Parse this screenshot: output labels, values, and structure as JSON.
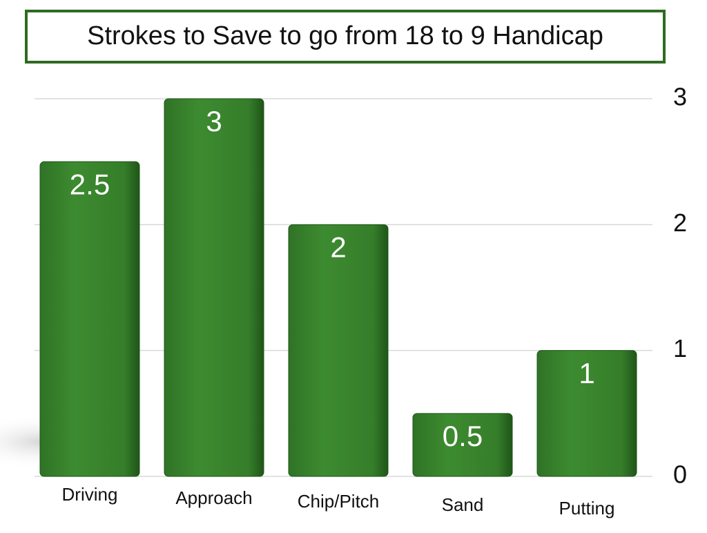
{
  "chart_data": {
    "type": "bar",
    "title": "Strokes to Save to go from 18 to 9 Handicap",
    "categories": [
      "Driving",
      "Approach",
      "Chip/Pitch",
      "Sand",
      "Putting"
    ],
    "values": [
      2.5,
      3,
      2,
      0.5,
      1
    ],
    "color": "#3d8b30",
    "ylim": [
      0,
      3
    ],
    "yticks": [
      0,
      1,
      2,
      3
    ],
    "grid": true,
    "y_axis_side": "right"
  }
}
